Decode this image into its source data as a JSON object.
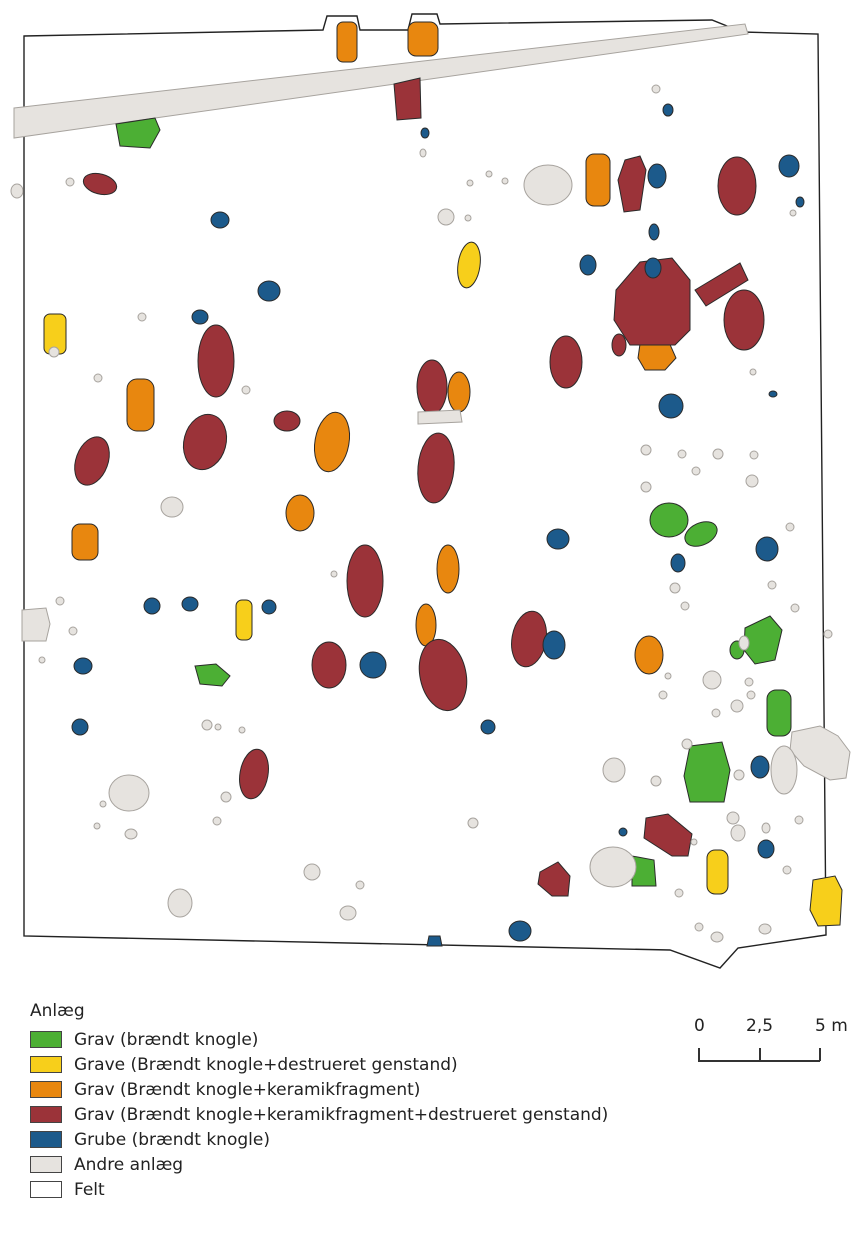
{
  "legend": {
    "title": "Anlæg",
    "items": [
      {
        "label": "Grav (brændt knogle)",
        "color": "#4caf34"
      },
      {
        "label": "Grave (Brændt knogle+destrueret genstand)",
        "color": "#f7cf1b"
      },
      {
        "label": "Grav (Brændt knogle+keramikfragment)",
        "color": "#e8870f"
      },
      {
        "label": "Grav (Brændt knogle+keramikfragment+destrueret genstand)",
        "color": "#9b3339"
      },
      {
        "label": "Grube (brændt knogle)",
        "color": "#1c5a8b"
      },
      {
        "label": "Andre anlæg",
        "color": "#e6e3df"
      },
      {
        "label": "Felt",
        "color": "#ffffff"
      }
    ]
  },
  "scalebar": {
    "labels": [
      "0",
      "2,5",
      "5 m"
    ]
  }
}
